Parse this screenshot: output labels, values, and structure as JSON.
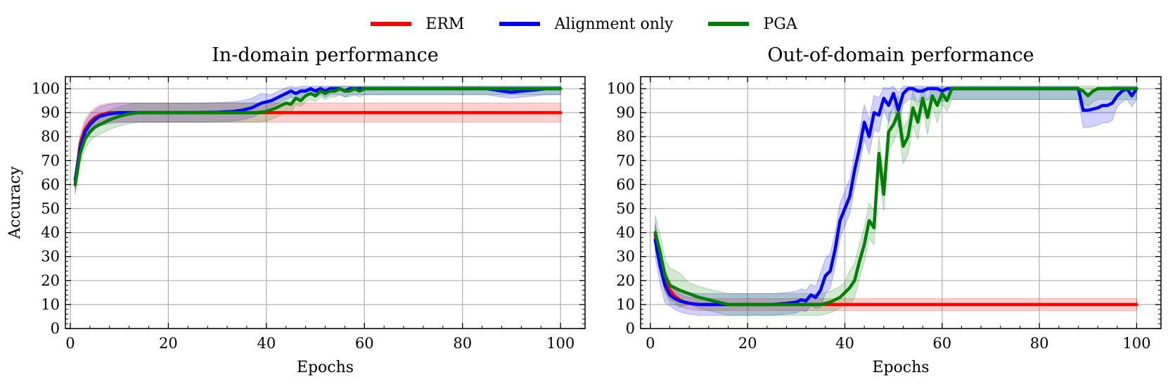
{
  "legend": [
    {
      "label": "ERM",
      "color": "#ff0000"
    },
    {
      "label": "Alignment only",
      "color": "#0000ff"
    },
    {
      "label": "PGA",
      "color": "#008000"
    }
  ],
  "chart_data": [
    {
      "type": "line",
      "title": "In-domain performance",
      "xlabel": "Epochs",
      "ylabel": "Accuracy",
      "xlim": [
        -1,
        105
      ],
      "ylim": [
        0,
        105
      ],
      "xticks": [
        0,
        20,
        40,
        60,
        80,
        100
      ],
      "yticks": [
        0,
        10,
        20,
        30,
        40,
        50,
        60,
        70,
        80,
        90,
        100
      ],
      "grid": true,
      "series": [
        {
          "name": "ERM",
          "color": "#ff0000",
          "band": 0,
          "x": [
            1,
            2,
            3,
            4,
            5,
            6,
            7,
            8,
            10,
            12,
            15,
            100
          ],
          "y": [
            60,
            77,
            83,
            86,
            88,
            89,
            89.5,
            90,
            90,
            90,
            90,
            90
          ]
        },
        {
          "name": "Alignment only",
          "color": "#0000ff",
          "band": 0,
          "x": [
            1,
            2,
            3,
            4,
            5,
            6,
            8,
            10,
            12,
            15,
            20,
            25,
            30,
            33,
            35,
            37,
            39,
            41,
            43,
            45,
            46,
            47,
            48,
            49,
            50,
            51,
            52,
            53,
            54,
            55,
            56,
            57,
            58,
            60,
            65,
            70,
            75,
            80,
            85,
            88,
            90,
            92,
            95,
            97,
            100
          ],
          "y": [
            62,
            75,
            82,
            85,
            87,
            88.5,
            89.5,
            90,
            90,
            90,
            90,
            90,
            90.2,
            90.5,
            91,
            92,
            94,
            95,
            97,
            99,
            98,
            99,
            99,
            100,
            99,
            100,
            99,
            100,
            100,
            100,
            99,
            100,
            100,
            100,
            100,
            100,
            100,
            100,
            100,
            99,
            98.5,
            99,
            99.5,
            100,
            100
          ]
        },
        {
          "name": "PGA",
          "color": "#008000",
          "band": 0,
          "x": [
            1,
            2,
            3,
            4,
            5,
            6,
            8,
            10,
            12,
            14,
            15,
            20,
            25,
            30,
            35,
            38,
            40,
            42,
            43,
            44,
            45,
            46,
            47,
            48,
            49,
            50,
            51,
            52,
            53,
            54,
            55,
            56,
            57,
            58,
            59,
            60,
            62,
            65,
            70,
            75,
            80,
            85,
            90,
            95,
            100
          ],
          "y": [
            60,
            73,
            79,
            82,
            84,
            85,
            87,
            88.5,
            89.5,
            90,
            90,
            90,
            90,
            90,
            90,
            90,
            90.5,
            92,
            93,
            94,
            93.5,
            96,
            95,
            97,
            98,
            97,
            99,
            98,
            99,
            99,
            100,
            99,
            99,
            100,
            99,
            100,
            100,
            100,
            100,
            100,
            100,
            100,
            100,
            100,
            100
          ]
        }
      ]
    },
    {
      "type": "line",
      "title": "Out-of-domain performance",
      "xlabel": "Epochs",
      "ylabel": "",
      "xlim": [
        -2,
        105
      ],
      "ylim": [
        0,
        105
      ],
      "xticks": [
        0,
        20,
        40,
        60,
        80,
        100
      ],
      "yticks": [
        0,
        10,
        20,
        30,
        40,
        50,
        60,
        70,
        80,
        90,
        100
      ],
      "grid": true,
      "series": [
        {
          "name": "ERM",
          "color": "#ff0000",
          "band": 0,
          "x": [
            1,
            2,
            3,
            4,
            5,
            6,
            7,
            8,
            10,
            12,
            15,
            100
          ],
          "y": [
            39,
            28,
            20,
            16,
            13.5,
            12,
            11,
            10.5,
            10,
            10,
            10,
            10
          ]
        },
        {
          "name": "Alignment only",
          "color": "#0000ff",
          "band": 1,
          "x": [
            1,
            2,
            3,
            4,
            5,
            6,
            7,
            8,
            10,
            12,
            15,
            20,
            25,
            28,
            30,
            31,
            32,
            33,
            34,
            35,
            36,
            37,
            38,
            39,
            40,
            41,
            42,
            43,
            44,
            45,
            46,
            47,
            48,
            49,
            50,
            51,
            52,
            53,
            54,
            55,
            56,
            57,
            58,
            59,
            60,
            61,
            62,
            64,
            66,
            68,
            70,
            72,
            74,
            76,
            78,
            80,
            82,
            84,
            86,
            88,
            89,
            90,
            91,
            92,
            93,
            94,
            95,
            96,
            97,
            98,
            99,
            100
          ],
          "y": [
            37,
            26,
            18,
            14,
            12.5,
            11.5,
            11,
            10.5,
            10,
            10,
            10,
            10,
            10,
            10.5,
            11,
            12,
            11.5,
            14,
            13,
            16,
            22,
            24,
            33,
            45,
            50,
            55,
            66,
            75,
            86,
            80,
            90,
            89,
            96,
            93,
            98,
            91,
            98,
            100,
            100,
            99,
            99,
            100,
            100,
            100,
            99,
            100,
            100,
            100,
            100,
            100,
            100,
            100,
            100,
            100,
            100,
            100,
            100,
            100,
            100,
            100,
            91,
            91,
            91.5,
            92,
            93,
            93,
            94,
            97,
            99,
            100,
            97,
            100
          ]
        },
        {
          "name": "PGA",
          "color": "#008000",
          "band": 1,
          "x": [
            1,
            2,
            3,
            4,
            5,
            6,
            8,
            10,
            12,
            14,
            16,
            18,
            20,
            25,
            30,
            33,
            35,
            36,
            37,
            38,
            39,
            40,
            41,
            42,
            43,
            44,
            45,
            46,
            47,
            48,
            49,
            50,
            51,
            52,
            53,
            54,
            55,
            56,
            57,
            58,
            59,
            60,
            61,
            62,
            64,
            66,
            68,
            70,
            72,
            74,
            76,
            78,
            80,
            82,
            84,
            86,
            88,
            89,
            90,
            91,
            92,
            94,
            96,
            98,
            100
          ],
          "y": [
            40,
            32,
            22,
            18,
            17,
            16,
            14.5,
            13,
            12,
            11,
            10,
            10,
            10,
            10,
            10,
            10,
            10,
            10.5,
            11,
            12,
            13,
            15,
            17,
            20,
            28,
            35,
            45,
            42,
            73,
            56,
            82,
            85,
            90,
            76,
            80,
            92,
            86,
            96,
            88,
            97,
            93,
            98,
            95,
            100,
            100,
            100,
            100,
            100,
            100,
            100,
            100,
            100,
            100,
            100,
            100,
            100,
            100,
            99,
            97,
            99,
            100,
            100,
            100,
            100,
            100
          ]
        }
      ]
    }
  ]
}
